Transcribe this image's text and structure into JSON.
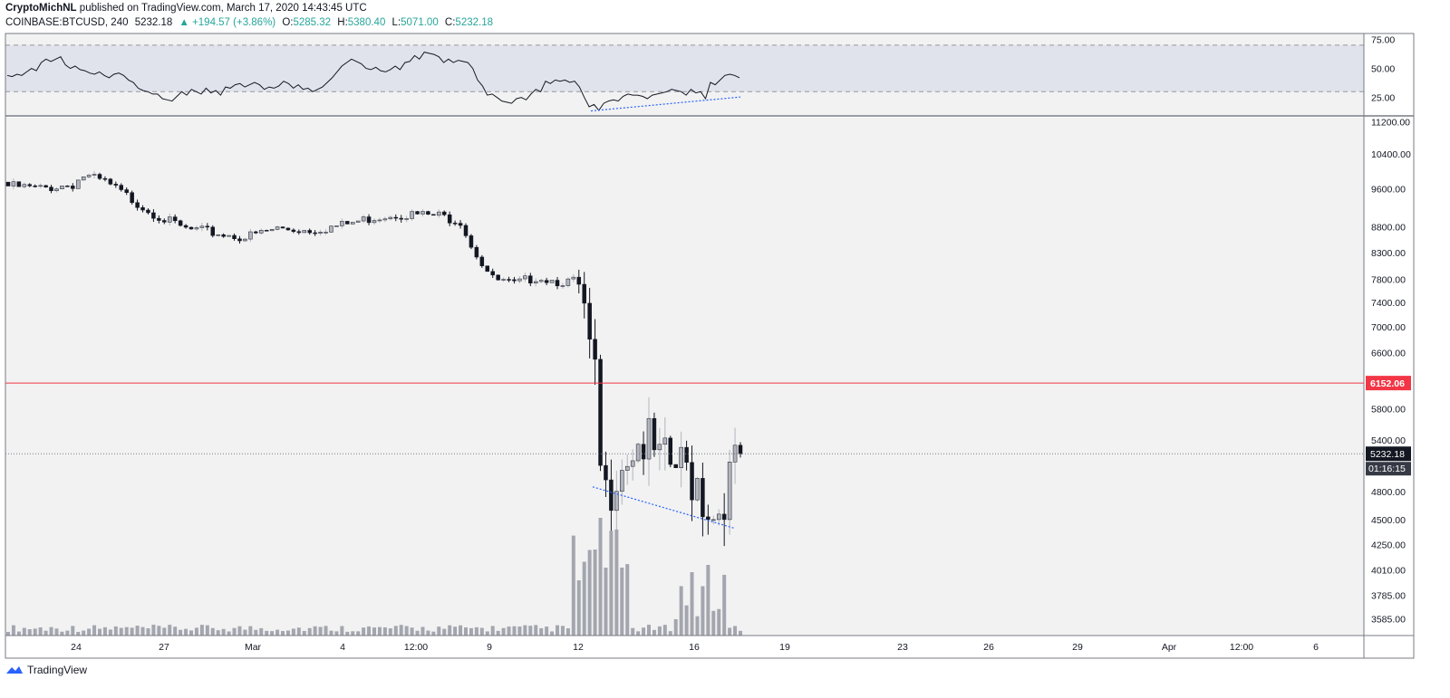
{
  "header": {
    "author": "CryptoMichNL",
    "published_text": "published on TradingView.com, March 17, 2020 14:43:45 UTC"
  },
  "symbol_bar": {
    "symbol": "COINBASE:BTCUSD, 240",
    "last": "5232.18",
    "change": "+194.57 (+3.86%)",
    "o_label": "O:",
    "o": "5285.32",
    "h_label": "H:",
    "h": "5380.40",
    "l_label": "L:",
    "l": "5071.00",
    "c_label": "C:",
    "c": "5232.18"
  },
  "footer": {
    "brand": "TradingView"
  },
  "colors": {
    "up_candle": "#b2b5be",
    "down_candle": "#131722",
    "volume": "#a3a6af",
    "support_line": "#f23645",
    "trend_line": "#2962ff",
    "rsi_line": "#131722",
    "rsi_band": "#e0e3eb",
    "panel_bg": "#f2f2f2"
  },
  "chart_data": {
    "type": "candlestick",
    "symbol": "COINBASE:BTCUSD",
    "interval": "240",
    "price_axis_ticks": [
      11200,
      10400,
      9600,
      8800,
      8300,
      7800,
      7400,
      7000,
      6600,
      5800,
      5400,
      4800,
      4500,
      4250,
      4010,
      3785,
      3585
    ],
    "price_axis_labels": [
      "11200.00",
      "10400.00",
      "9600.00",
      "8800.00",
      "8300.00",
      "7800.00",
      "7400.00",
      "7000.00",
      "6600.00",
      "5800.00",
      "5400.00",
      "4800.00",
      "4500.00",
      "4250.00",
      "4010.00",
      "3785.00",
      "3585.00"
    ],
    "price_scale": "log",
    "price_range": [
      3450,
      11300
    ],
    "time_axis_labels": [
      "24",
      "27",
      "Mar",
      "4",
      "12:00",
      "9",
      "12",
      "16",
      "19",
      "23",
      "26",
      "29",
      "Apr",
      "12:00",
      "6"
    ],
    "horizontal_line": {
      "value": 6152.06,
      "label": "6152.06"
    },
    "last_price": {
      "value": 5232.18,
      "label": "5232.18",
      "countdown": "01:16:15"
    },
    "trendline_price": {
      "from": {
        "x": "Mar 12",
        "y": 4850
      },
      "to": {
        "x": "Mar 17",
        "y": 4410
      }
    },
    "rsi": {
      "axis_labels": [
        "75.00",
        "50.00",
        "25.00"
      ],
      "band": [
        30,
        70
      ],
      "range": [
        10,
        80
      ],
      "values": [
        44,
        43,
        45,
        44,
        47,
        50,
        48,
        55,
        58,
        56,
        58,
        60,
        53,
        50,
        52,
        49,
        48,
        46,
        45,
        47,
        44,
        42,
        45,
        46,
        44,
        40,
        38,
        33,
        31,
        30,
        28,
        28,
        24,
        23,
        22,
        26,
        30,
        27,
        32,
        30,
        28,
        33,
        29,
        31,
        27,
        34,
        33,
        36,
        37,
        34,
        36,
        38,
        36,
        32,
        34,
        33,
        35,
        39,
        37,
        33,
        36,
        32,
        33,
        30,
        32,
        34,
        38,
        42,
        47,
        52,
        55,
        58,
        56,
        54,
        50,
        49,
        51,
        48,
        47,
        49,
        52,
        49,
        55,
        56,
        61,
        58,
        64,
        63,
        62,
        60,
        55,
        58,
        55,
        57,
        56,
        55,
        50,
        40,
        35,
        27,
        28,
        25,
        22,
        21,
        20,
        24,
        25,
        23,
        28,
        32,
        30,
        39,
        37,
        40,
        39,
        40,
        38,
        39,
        34,
        25,
        17,
        19,
        14,
        20,
        22,
        23,
        22,
        26,
        28,
        27,
        27,
        26,
        24,
        27,
        28,
        29,
        30,
        32,
        31,
        30,
        27,
        32,
        29,
        30,
        24,
        38,
        36,
        40,
        44,
        45,
        44,
        42
      ],
      "trendline": {
        "from": 15,
        "to": 27
      }
    }
  }
}
